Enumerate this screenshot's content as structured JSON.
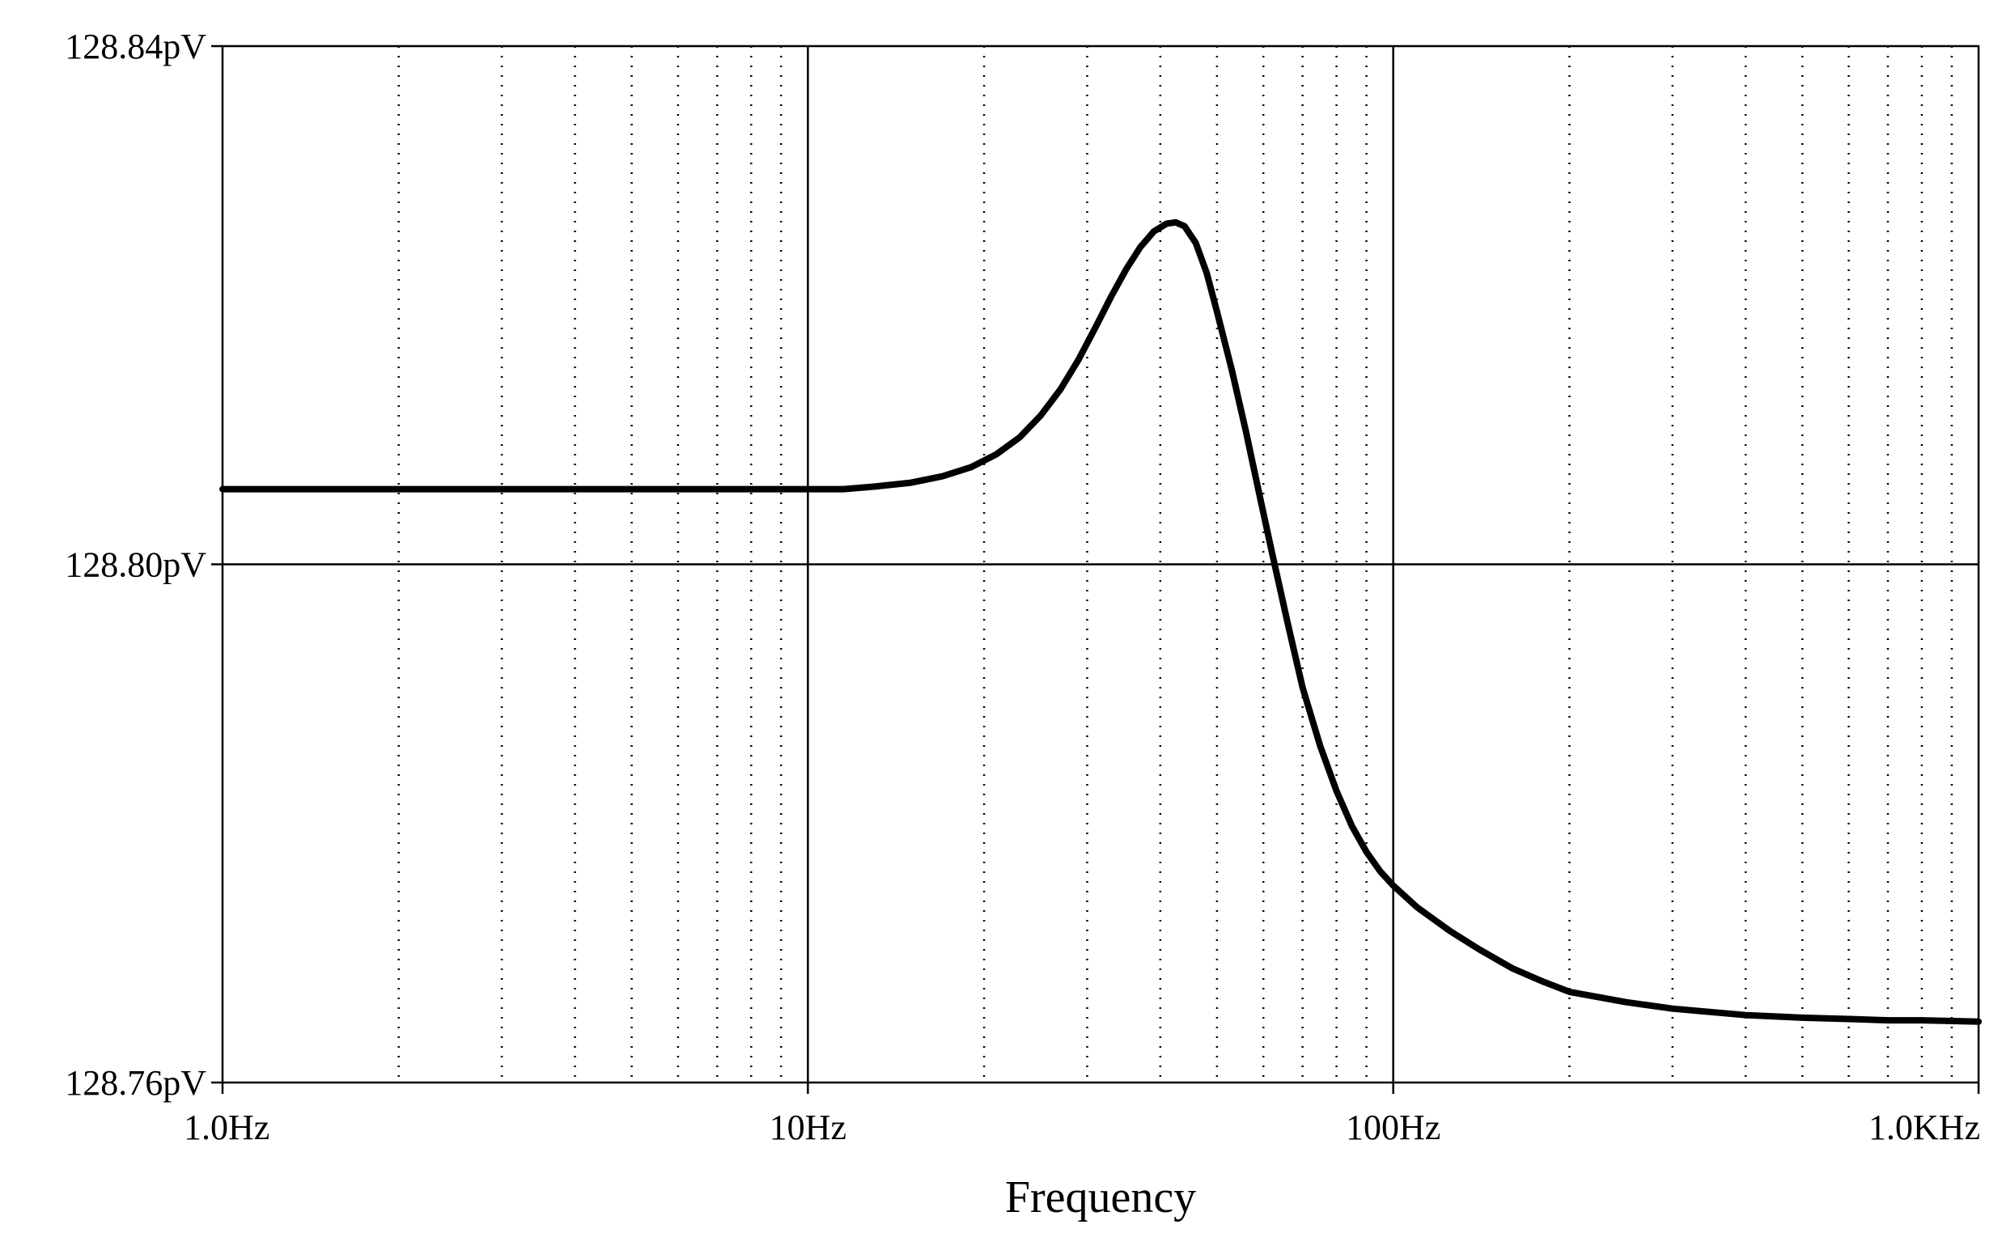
{
  "chart_data": {
    "type": "line",
    "title": "",
    "xlabel": "Frequency",
    "ylabel": "",
    "x_scale": "log",
    "xlim": [
      1,
      1000
    ],
    "ylim": [
      128.76,
      128.84
    ],
    "y_unit": "pV",
    "grid": {
      "major": true,
      "minor_x": true
    },
    "x_ticks": [
      {
        "value": 1,
        "label": "1.0Hz"
      },
      {
        "value": 10,
        "label": "10Hz"
      },
      {
        "value": 100,
        "label": "100Hz"
      },
      {
        "value": 1000,
        "label": "1.0KHz"
      }
    ],
    "y_ticks": [
      {
        "value": 128.76,
        "label": "128.76pV"
      },
      {
        "value": 128.8,
        "label": "128.80pV"
      },
      {
        "value": 128.84,
        "label": "128.84pV"
      }
    ],
    "series": [
      {
        "color": "#000000",
        "x": [
          1,
          2,
          5,
          10,
          11.5,
          13,
          15,
          17,
          19,
          21,
          23,
          25,
          27,
          29,
          31,
          33,
          35,
          37,
          39,
          41,
          42.5,
          44,
          46,
          48,
          50,
          53,
          56,
          59,
          62,
          66,
          70,
          75,
          80,
          85,
          90,
          95,
          100,
          110,
          125,
          140,
          160,
          180,
          200,
          250,
          300,
          400,
          500,
          600,
          700,
          800,
          1000
        ],
        "y": [
          128.8058,
          128.8058,
          128.8058,
          128.8058,
          128.8058,
          128.806,
          128.8063,
          128.8068,
          128.8075,
          128.8085,
          128.8098,
          128.8115,
          128.8135,
          128.8158,
          128.8183,
          128.8207,
          128.8228,
          128.8245,
          128.8257,
          128.8263,
          128.8264,
          128.8261,
          128.8248,
          128.8225,
          128.8195,
          128.815,
          128.8103,
          128.8055,
          128.801,
          128.7955,
          128.7905,
          128.786,
          128.7825,
          128.7798,
          128.7778,
          128.7763,
          128.7752,
          128.7735,
          128.7717,
          128.7703,
          128.7688,
          128.7678,
          128.767,
          128.7662,
          128.7657,
          128.7652,
          128.765,
          128.7649,
          128.7648,
          128.7648,
          128.7647
        ]
      }
    ]
  }
}
